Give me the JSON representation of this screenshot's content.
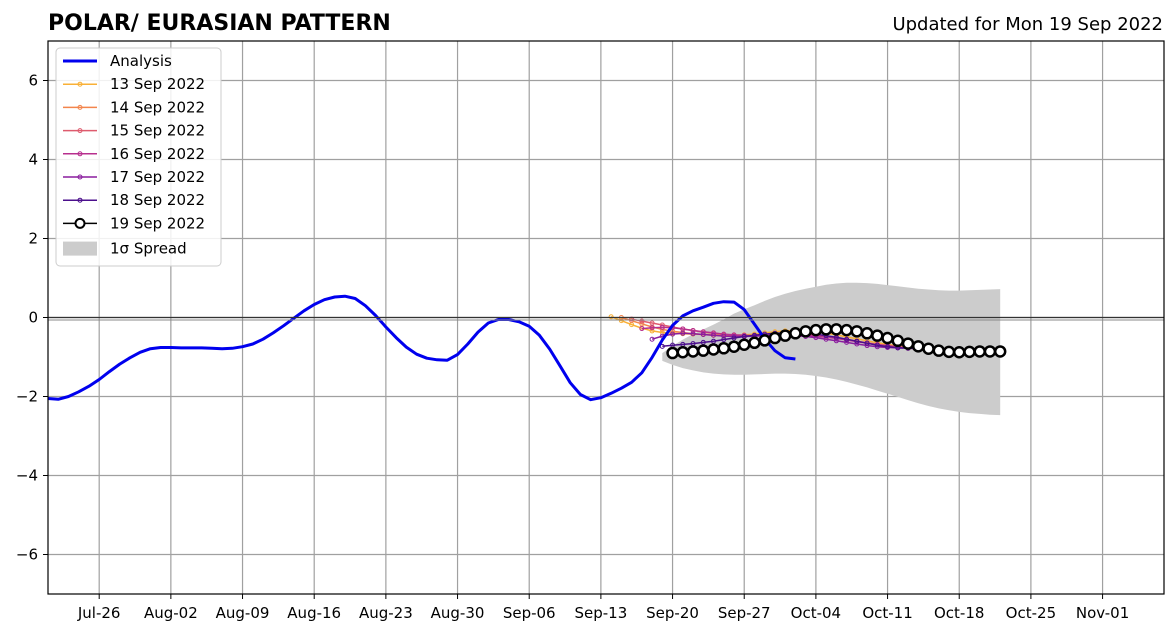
{
  "chart_data": {
    "type": "line",
    "title": "POLAR/ EURASIAN  PATTERN",
    "subtitle": "Updated for Mon 19 Sep 2022",
    "xlabel": "",
    "ylabel": "",
    "ylim": [
      -7,
      7
    ],
    "yticks": [
      -6,
      -4,
      -2,
      0,
      2,
      4,
      6
    ],
    "ytick_labels": [
      "−6",
      "−4",
      "−2",
      "0",
      "2",
      "4",
      "6"
    ],
    "x_axis": {
      "type": "date",
      "range": [
        "2022-07-21",
        "2022-11-07"
      ],
      "ticks": [
        "2022-07-26",
        "2022-08-02",
        "2022-08-09",
        "2022-08-16",
        "2022-08-23",
        "2022-08-30",
        "2022-09-06",
        "2022-09-13",
        "2022-09-20",
        "2022-09-27",
        "2022-10-04",
        "2022-10-11",
        "2022-10-18",
        "2022-10-25",
        "2022-11-01"
      ],
      "tick_labels": [
        "Jul-26",
        "Aug-02",
        "Aug-09",
        "Aug-16",
        "Aug-23",
        "Aug-30",
        "Sep-06",
        "Sep-13",
        "Sep-20",
        "Sep-27",
        "Oct-04",
        "Oct-11",
        "Oct-18",
        "Oct-25",
        "Nov-01"
      ]
    },
    "grid": true,
    "legend_position": "top-left",
    "series": [
      {
        "name": "Analysis",
        "color": "#0000ee",
        "style": "analysis",
        "start": "2022-07-21",
        "values": [
          -2.05,
          -2.07,
          -2.0,
          -1.88,
          -1.74,
          -1.57,
          -1.37,
          -1.18,
          -1.02,
          -0.88,
          -0.79,
          -0.76,
          -0.76,
          -0.77,
          -0.77,
          -0.77,
          -0.78,
          -0.79,
          -0.78,
          -0.74,
          -0.67,
          -0.55,
          -0.39,
          -0.21,
          -0.02,
          0.17,
          0.33,
          0.45,
          0.52,
          0.54,
          0.48,
          0.3,
          0.05,
          -0.24,
          -0.51,
          -0.75,
          -0.93,
          -1.03,
          -1.07,
          -1.08,
          -0.94,
          -0.67,
          -0.37,
          -0.14,
          -0.05,
          -0.05,
          -0.11,
          -0.22,
          -0.45,
          -0.8,
          -1.22,
          -1.65,
          -1.95,
          -2.08,
          -2.03,
          -1.92,
          -1.79,
          -1.64,
          -1.4,
          -1.01,
          -0.57,
          -0.2,
          0.04,
          0.17,
          0.26,
          0.36,
          0.4,
          0.39,
          0.2,
          -0.17,
          -0.54,
          -0.84,
          -1.02,
          -1.05
        ]
      },
      {
        "name": "13 Sep 2022",
        "color": "#f9b036",
        "style": "member",
        "start": "2022-09-14",
        "values": [
          0.02,
          -0.08,
          -0.18,
          -0.27,
          -0.34,
          -0.38,
          -0.4,
          -0.41,
          -0.42,
          -0.43,
          -0.44,
          -0.45,
          -0.45,
          -0.44,
          -0.42,
          -0.39,
          -0.36,
          -0.34,
          -0.33,
          -0.34,
          -0.36,
          -0.4,
          -0.44,
          -0.49,
          -0.54,
          -0.59,
          -0.64,
          -0.68,
          -0.72,
          -0.76,
          -0.78,
          -0.79
        ]
      },
      {
        "name": "14 Sep 2022",
        "color": "#f3854c",
        "style": "member",
        "start": "2022-09-15",
        "values": [
          0.0,
          -0.08,
          -0.16,
          -0.24,
          -0.3,
          -0.35,
          -0.38,
          -0.41,
          -0.43,
          -0.45,
          -0.46,
          -0.47,
          -0.47,
          -0.46,
          -0.44,
          -0.42,
          -0.41,
          -0.41,
          -0.42,
          -0.44,
          -0.47,
          -0.51,
          -0.55,
          -0.6,
          -0.65,
          -0.69,
          -0.73,
          -0.76,
          -0.78,
          -0.79
        ]
      },
      {
        "name": "15 Sep 2022",
        "color": "#de5b6e",
        "style": "member",
        "start": "2022-09-16",
        "values": [
          -0.04,
          -0.09,
          -0.14,
          -0.19,
          -0.24,
          -0.29,
          -0.33,
          -0.37,
          -0.4,
          -0.43,
          -0.45,
          -0.46,
          -0.46,
          -0.45,
          -0.44,
          -0.43,
          -0.43,
          -0.44,
          -0.46,
          -0.49,
          -0.52,
          -0.56,
          -0.6,
          -0.64,
          -0.68,
          -0.71,
          -0.74,
          -0.77,
          -0.79
        ]
      },
      {
        "name": "16 Sep 2022",
        "color": "#b72f8e",
        "style": "member",
        "start": "2022-09-17",
        "values": [
          -0.28,
          -0.26,
          -0.25,
          -0.26,
          -0.29,
          -0.33,
          -0.36,
          -0.39,
          -0.42,
          -0.44,
          -0.45,
          -0.46,
          -0.46,
          -0.45,
          -0.44,
          -0.44,
          -0.45,
          -0.47,
          -0.5,
          -0.53,
          -0.57,
          -0.61,
          -0.65,
          -0.69,
          -0.72,
          -0.75,
          -0.77,
          -0.79
        ]
      },
      {
        "name": "17 Sep 2022",
        "color": "#8a1d9e",
        "style": "member",
        "start": "2022-09-18",
        "values": [
          -0.55,
          -0.47,
          -0.42,
          -0.4,
          -0.41,
          -0.43,
          -0.45,
          -0.47,
          -0.48,
          -0.48,
          -0.47,
          -0.46,
          -0.45,
          -0.45,
          -0.46,
          -0.48,
          -0.51,
          -0.55,
          -0.59,
          -0.63,
          -0.67,
          -0.71,
          -0.74,
          -0.76,
          -0.77,
          -0.77,
          -0.76
        ]
      },
      {
        "name": "18 Sep 2022",
        "color": "#4b0f8c",
        "style": "member",
        "start": "2022-09-19",
        "values": [
          -0.73,
          -0.7,
          -0.68,
          -0.66,
          -0.63,
          -0.6,
          -0.56,
          -0.52,
          -0.48,
          -0.45,
          -0.42,
          -0.4,
          -0.39,
          -0.39,
          -0.4,
          -0.42,
          -0.46,
          -0.5,
          -0.55,
          -0.6,
          -0.65,
          -0.7,
          -0.74,
          -0.77,
          -0.78,
          -0.79
        ]
      },
      {
        "name": "19 Sep 2022",
        "color": "#000000",
        "style": "latest",
        "start": "2022-09-20",
        "values": [
          -0.9,
          -0.88,
          -0.86,
          -0.84,
          -0.81,
          -0.78,
          -0.74,
          -0.69,
          -0.64,
          -0.58,
          -0.52,
          -0.46,
          -0.4,
          -0.35,
          -0.32,
          -0.3,
          -0.3,
          -0.32,
          -0.35,
          -0.4,
          -0.46,
          -0.52,
          -0.59,
          -0.66,
          -0.73,
          -0.79,
          -0.84,
          -0.87,
          -0.88,
          -0.87,
          -0.86,
          -0.86,
          -0.86
        ]
      }
    ],
    "spread": {
      "name": "1σ Spread",
      "color": "#cccccc",
      "start": "2022-09-19",
      "upper": [
        -0.9,
        -0.72,
        -0.56,
        -0.42,
        -0.3,
        -0.18,
        -0.05,
        0.1,
        0.21,
        0.31,
        0.42,
        0.52,
        0.6,
        0.67,
        0.73,
        0.78,
        0.83,
        0.86,
        0.88,
        0.88,
        0.87,
        0.85,
        0.82,
        0.79,
        0.76,
        0.73,
        0.71,
        0.69,
        0.68,
        0.68,
        0.69,
        0.7,
        0.71,
        0.72
      ],
      "lower": [
        -1.1,
        -1.2,
        -1.28,
        -1.34,
        -1.39,
        -1.42,
        -1.44,
        -1.45,
        -1.45,
        -1.44,
        -1.43,
        -1.42,
        -1.42,
        -1.43,
        -1.45,
        -1.48,
        -1.52,
        -1.57,
        -1.63,
        -1.7,
        -1.77,
        -1.85,
        -1.93,
        -2.01,
        -2.09,
        -2.17,
        -2.24,
        -2.3,
        -2.35,
        -2.39,
        -2.42,
        -2.44,
        -2.46,
        -2.47
      ]
    }
  }
}
